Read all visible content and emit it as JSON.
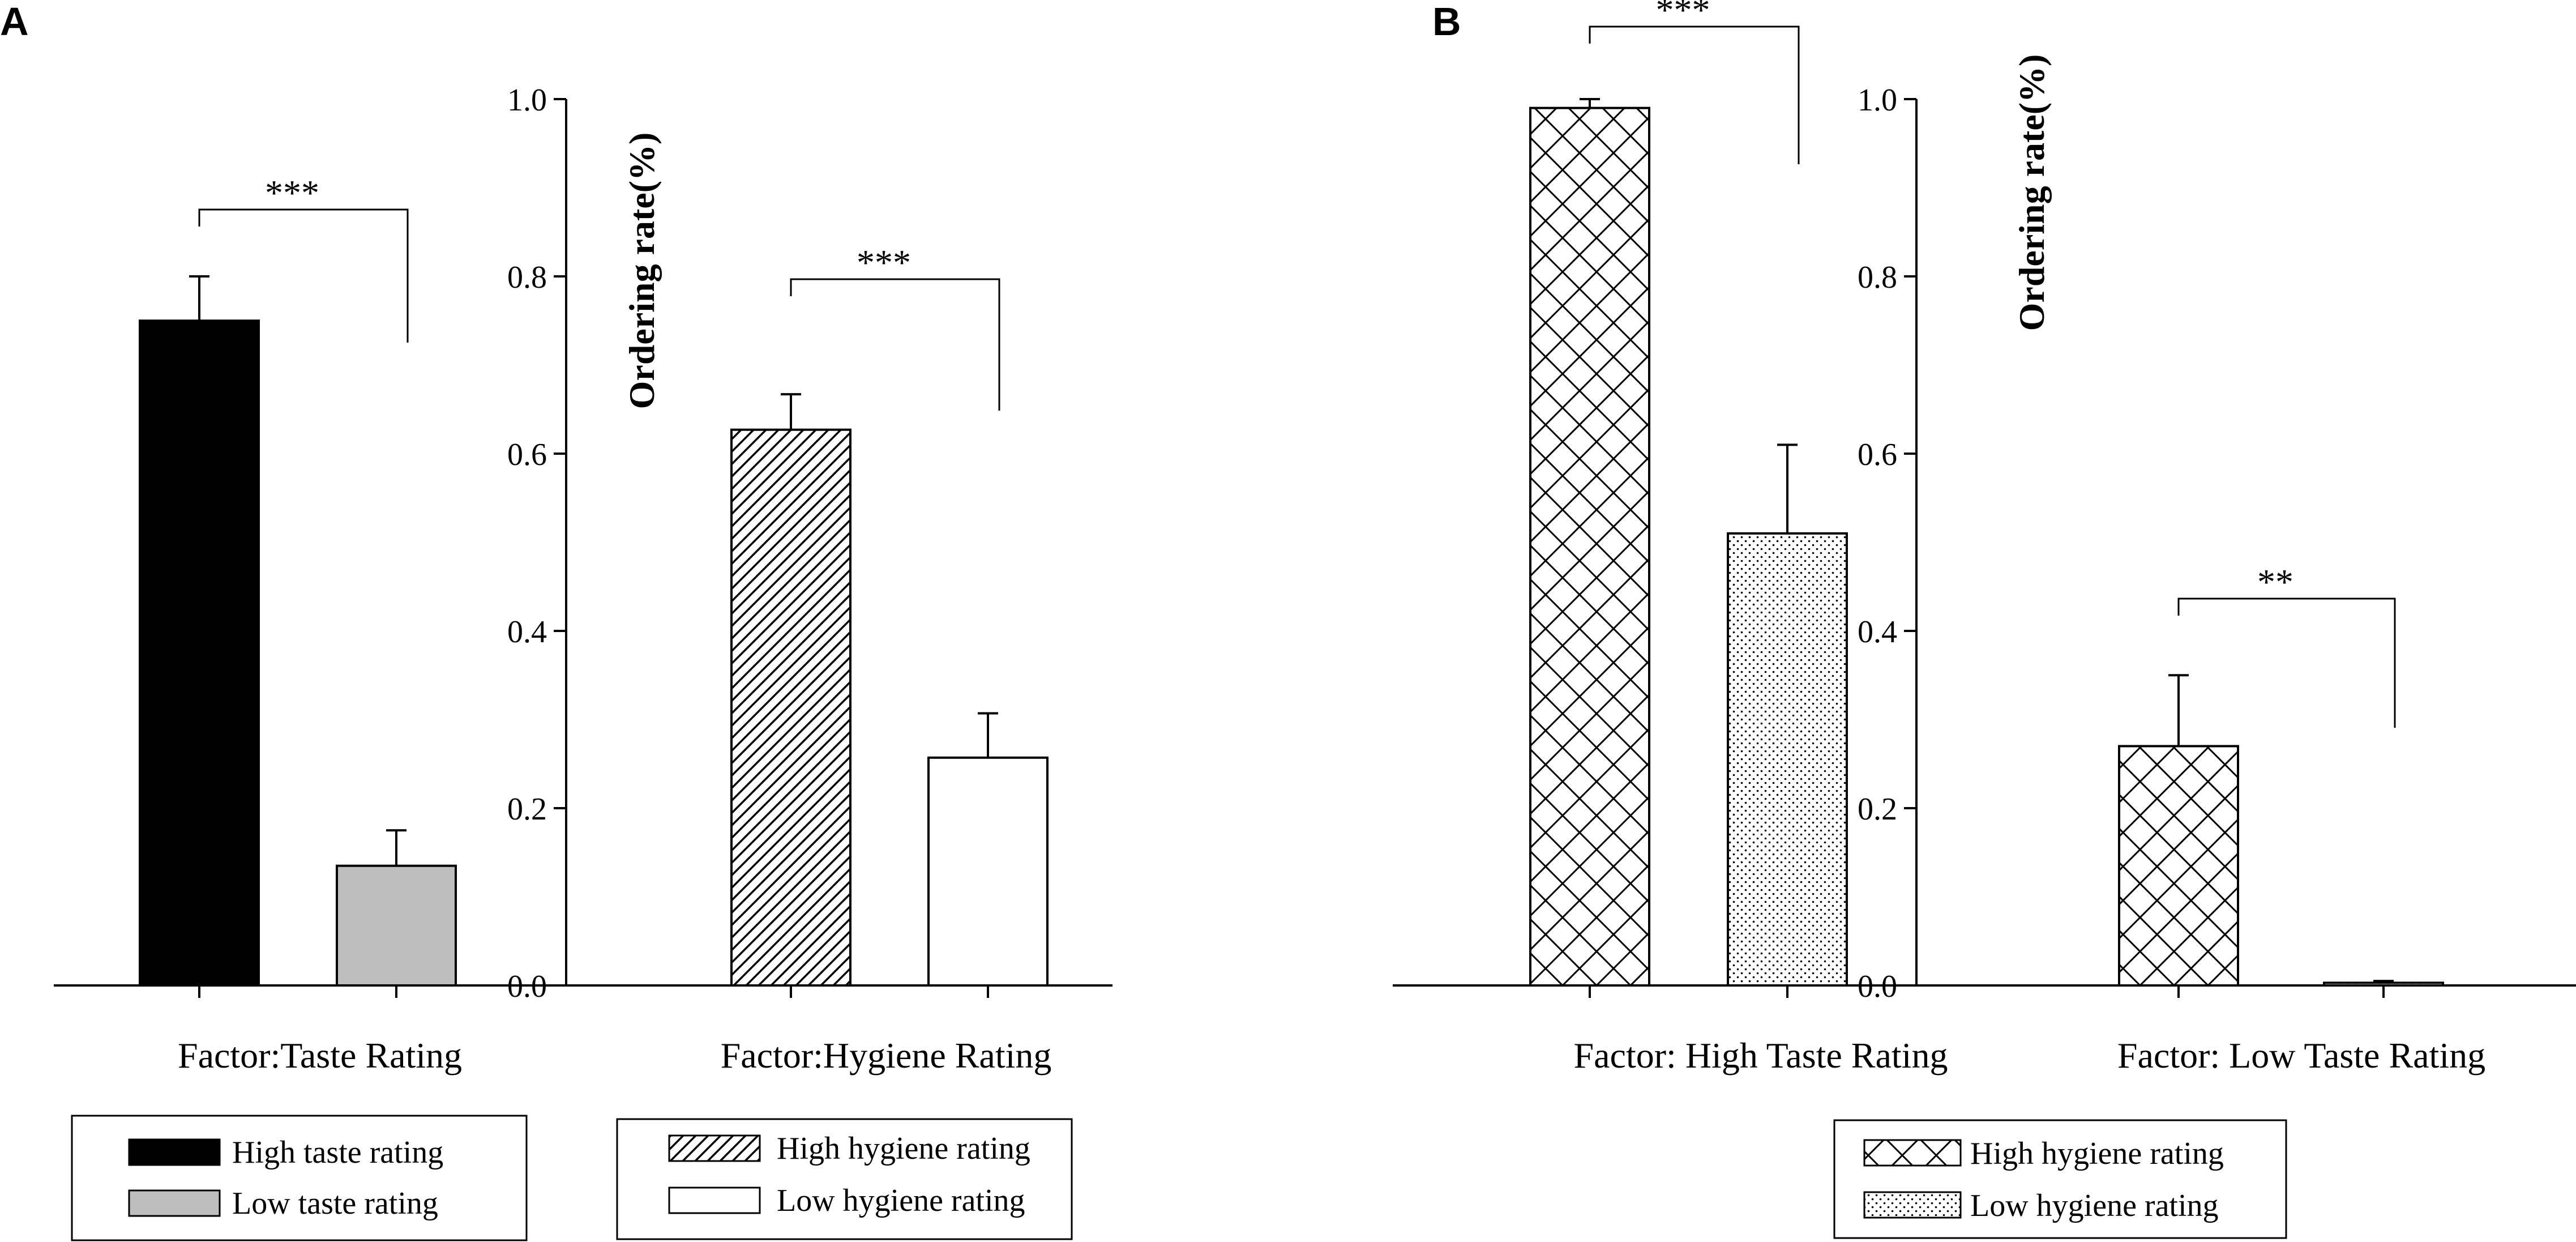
{
  "chart_data": [
    {
      "type": "bar",
      "panel_label": "A",
      "ylabel": "Ordering rate(%)",
      "ylim": [
        0,
        1.0
      ],
      "yticks": [
        "0.0",
        "0.2",
        "0.4",
        "0.6",
        "0.8",
        "1.0"
      ],
      "groups": [
        {
          "xlabel": "Factor:Taste Rating",
          "significance": "***",
          "bars": [
            {
              "name": "High taste rating",
              "value": 0.75,
              "error": 0.05,
              "fill": "solid-black"
            },
            {
              "name": "Low taste rating",
              "value": 0.135,
              "error": 0.04,
              "fill": "solid-gray"
            }
          ]
        },
        {
          "xlabel": "Factor:Hygiene Rating",
          "significance": "***",
          "bars": [
            {
              "name": "High hygiene rating",
              "value": 0.627,
              "error": 0.04,
              "fill": "diagonal-hatch"
            },
            {
              "name": "Low hygiene rating",
              "value": 0.257,
              "error": 0.05,
              "fill": "white"
            }
          ]
        }
      ],
      "legends": [
        {
          "entries": [
            {
              "label": "High taste rating",
              "fill": "solid-black"
            },
            {
              "label": "Low taste rating",
              "fill": "solid-gray"
            }
          ]
        },
        {
          "entries": [
            {
              "label": "High hygiene rating",
              "fill": "diagonal-hatch"
            },
            {
              "label": "Low hygiene rating",
              "fill": "white"
            }
          ]
        }
      ]
    },
    {
      "type": "bar",
      "panel_label": "B",
      "ylabel": "Ordering rate(%)",
      "ylim": [
        0,
        1.0
      ],
      "yticks": [
        "0.0",
        "0.2",
        "0.4",
        "0.6",
        "0.8",
        "1.0"
      ],
      "groups": [
        {
          "xlabel": "Factor: High Taste Rating",
          "significance": "***",
          "bars": [
            {
              "name": "High hygiene rating",
              "value": 0.99,
              "error": 0.01,
              "fill": "crosshatch"
            },
            {
              "name": "Low hygiene rating",
              "value": 0.51,
              "error": 0.1,
              "fill": "dots"
            }
          ]
        },
        {
          "xlabel": "Factor: Low Taste Rating",
          "significance": "**",
          "bars": [
            {
              "name": "High hygiene rating",
              "value": 0.27,
              "error": 0.08,
              "fill": "crosshatch"
            },
            {
              "name": "Low hygiene rating",
              "value": 0.003,
              "error": 0.002,
              "fill": "dots"
            }
          ]
        }
      ],
      "legends": [
        {
          "entries": [
            {
              "label": "High hygiene rating",
              "fill": "crosshatch"
            },
            {
              "label": "Low hygiene rating",
              "fill": "dots"
            }
          ]
        }
      ]
    }
  ]
}
